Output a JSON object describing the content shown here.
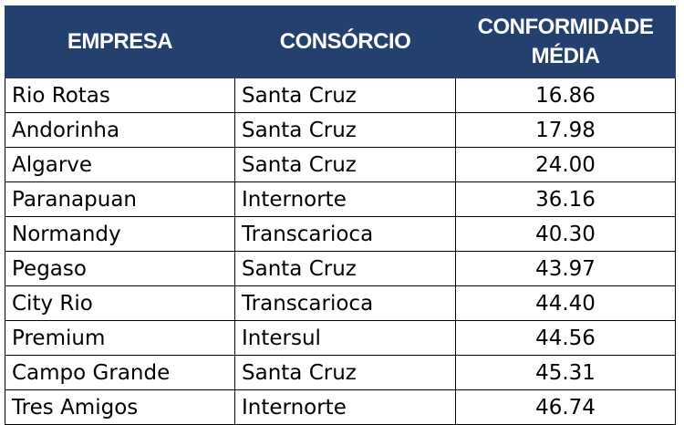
{
  "headers": {
    "empresa": "EMPRESA",
    "consorcio": "CONSÓRCIO",
    "conformidade_line1": "CONFORMIDADE",
    "conformidade_line2": "MÉDIA"
  },
  "rows": [
    {
      "empresa": "Rio Rotas",
      "consorcio": "Santa Cruz",
      "conformidade": "16.86"
    },
    {
      "empresa": "Andorinha",
      "consorcio": "Santa Cruz",
      "conformidade": "17.98"
    },
    {
      "empresa": "Algarve",
      "consorcio": "Santa Cruz",
      "conformidade": "24.00"
    },
    {
      "empresa": "Paranapuan",
      "consorcio": "Internorte",
      "conformidade": "36.16"
    },
    {
      "empresa": "Normandy",
      "consorcio": "Transcarioca",
      "conformidade": "40.30"
    },
    {
      "empresa": "Pegaso",
      "consorcio": "Santa Cruz",
      "conformidade": "43.97"
    },
    {
      "empresa": "City Rio",
      "consorcio": "Transcarioca",
      "conformidade": "44.40"
    },
    {
      "empresa": "Premium",
      "consorcio": "Intersul",
      "conformidade": "44.56"
    },
    {
      "empresa": "Campo Grande",
      "consorcio": "Santa Cruz",
      "conformidade": "45.31"
    },
    {
      "empresa": "Tres Amigos",
      "consorcio": "Internorte",
      "conformidade": "46.74"
    }
  ],
  "colors": {
    "header_bg": "#24406f",
    "header_text": "#ffffff",
    "border": "#000000"
  }
}
